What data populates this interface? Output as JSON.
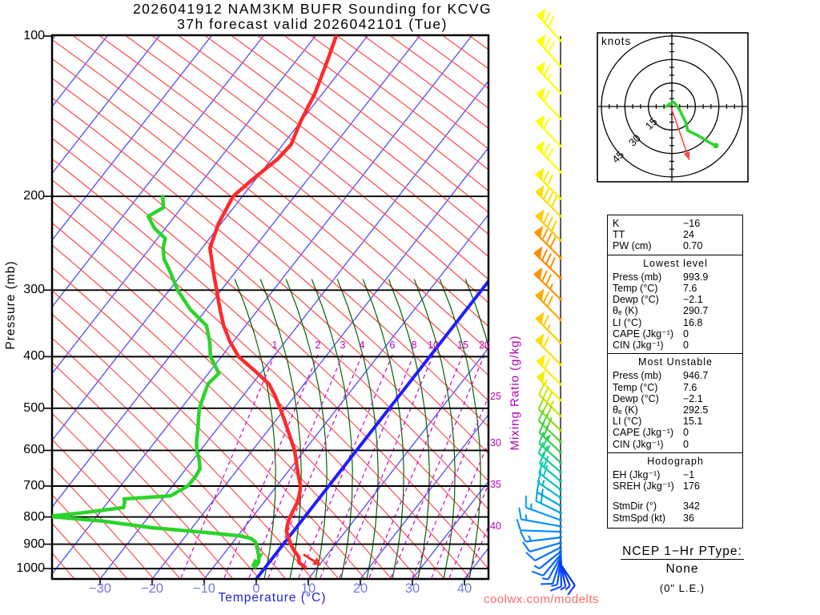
{
  "title": {
    "line1": "2026041912 NAM3KM BUFR Sounding for KCVG",
    "line2": "37h forecast valid 2026042101 (Tue)"
  },
  "watermark": "coolwx.com/modelts",
  "axes": {
    "pressure_label": "Pressure (mb)",
    "pressure_ticks": [
      100,
      200,
      300,
      400,
      500,
      600,
      700,
      800,
      900,
      1000
    ],
    "temp_label": "Temperature (°C)",
    "temp_ticks": [
      -30,
      -20,
      -10,
      0,
      10,
      20,
      30,
      40
    ],
    "mixing_label": "Mixing Ratio (g/kg)",
    "mixing_ticks_400mb": [
      1,
      2,
      3,
      4,
      6,
      8,
      10,
      15,
      20
    ],
    "mixing_ticks_right": [
      25,
      30,
      35,
      40
    ]
  },
  "chart_data": {
    "type": "skewt-sounding",
    "pressure_range_mb": [
      100,
      1050
    ],
    "temp_axis_range_c": [
      -40,
      45
    ],
    "temperature_profile_p_t": [
      [
        993.9,
        7.6
      ],
      [
        975,
        5.8
      ],
      [
        950,
        4.8
      ],
      [
        925,
        3.0
      ],
      [
        900,
        1.4
      ],
      [
        875,
        0.0
      ],
      [
        850,
        -1.4
      ],
      [
        825,
        -2.2
      ],
      [
        800,
        -2.8
      ],
      [
        775,
        -3.2
      ],
      [
        750,
        -3.6
      ],
      [
        725,
        -4.4
      ],
      [
        700,
        -5.4
      ],
      [
        675,
        -7.0
      ],
      [
        650,
        -8.6
      ],
      [
        625,
        -10.2
      ],
      [
        600,
        -11.9
      ],
      [
        575,
        -14.0
      ],
      [
        550,
        -16.2
      ],
      [
        525,
        -18.5
      ],
      [
        500,
        -21.0
      ],
      [
        475,
        -23.7
      ],
      [
        450,
        -26.8
      ],
      [
        425,
        -31.5
      ],
      [
        400,
        -36.7
      ],
      [
        375,
        -40.6
      ],
      [
        350,
        -44.2
      ],
      [
        325,
        -47.5
      ],
      [
        300,
        -50.9
      ],
      [
        275,
        -54.6
      ],
      [
        250,
        -58.5
      ],
      [
        225,
        -60.5
      ],
      [
        200,
        -61.8
      ],
      [
        185,
        -60.5
      ],
      [
        170,
        -58.8
      ],
      [
        160,
        -58.4
      ],
      [
        145,
        -60.0
      ],
      [
        128,
        -61.5
      ],
      [
        110,
        -64.2
      ],
      [
        100,
        -66.0
      ]
    ],
    "dewpoint_profile_p_t": [
      [
        993.9,
        -2.1
      ],
      [
        975,
        -2.0
      ],
      [
        950,
        -2.8
      ],
      [
        925,
        -4.0
      ],
      [
        900,
        -5.2
      ],
      [
        890,
        -5.8
      ],
      [
        878,
        -7.1
      ],
      [
        868,
        -9.7
      ],
      [
        855,
        -17.0
      ],
      [
        838,
        -27.7
      ],
      [
        815,
        -38.0
      ],
      [
        798,
        -49.3
      ],
      [
        785,
        -43.0
      ],
      [
        768,
        -36.2
      ],
      [
        750,
        -36.8
      ],
      [
        740,
        -37.4
      ],
      [
        735,
        -33.0
      ],
      [
        730,
        -28.9
      ],
      [
        715,
        -28.0
      ],
      [
        700,
        -27.1
      ],
      [
        675,
        -27.0
      ],
      [
        650,
        -27.3
      ],
      [
        625,
        -28.8
      ],
      [
        600,
        -30.7
      ],
      [
        575,
        -32.2
      ],
      [
        550,
        -33.5
      ],
      [
        525,
        -35.0
      ],
      [
        500,
        -36.5
      ],
      [
        470,
        -37.7
      ],
      [
        450,
        -38.5
      ],
      [
        430,
        -38.0
      ],
      [
        415,
        -40.0
      ],
      [
        400,
        -42.1
      ],
      [
        375,
        -44.5
      ],
      [
        350,
        -47.5
      ],
      [
        326,
        -53.1
      ],
      [
        300,
        -58.4
      ],
      [
        275,
        -63.0
      ],
      [
        262,
        -65.7
      ],
      [
        250,
        -67.5
      ],
      [
        240,
        -68.5
      ],
      [
        230,
        -72.0
      ],
      [
        218,
        -75.1
      ],
      [
        210,
        -73.5
      ],
      [
        200,
        -75.3
      ]
    ],
    "wind_barbs": [
      [
        102,
        42,
        44,
        1,
        2,
        0,
        "#ffff00"
      ],
      [
        114,
        42,
        44,
        1,
        2,
        0,
        "#ffff00"
      ],
      [
        128,
        43,
        44,
        1,
        1,
        1,
        "#ffff00"
      ],
      [
        143,
        43,
        44,
        1,
        1,
        0,
        "#ffff00"
      ],
      [
        161,
        44,
        44,
        1,
        1,
        0,
        "#ffff00"
      ],
      [
        180,
        44,
        44,
        1,
        2,
        0,
        "#ffff00"
      ],
      [
        202,
        45,
        44,
        1,
        2,
        0,
        "#ffee00"
      ],
      [
        218,
        45,
        44,
        1,
        3,
        0,
        "#ffdd00"
      ],
      [
        242,
        45,
        44,
        1,
        3,
        0,
        "#ffcc00"
      ],
      [
        261,
        45,
        46,
        1,
        3,
        0,
        "#ff9900"
      ],
      [
        285,
        46,
        46,
        1,
        3,
        0,
        "#ff8800"
      ],
      [
        312,
        46,
        46,
        1,
        2,
        1,
        "#ff9100"
      ],
      [
        341,
        45,
        44,
        1,
        2,
        0,
        "#ffaa00"
      ],
      [
        377,
        45,
        44,
        1,
        1,
        1,
        "#ffc800"
      ],
      [
        414,
        45,
        44,
        1,
        1,
        0,
        "#ffdd00"
      ],
      [
        451,
        45,
        42,
        1,
        1,
        0,
        "#ffee00"
      ],
      [
        483,
        45,
        42,
        1,
        0,
        1,
        "#f2ee00"
      ],
      [
        517,
        45,
        38,
        0,
        3,
        1,
        "#cce600"
      ],
      [
        550,
        46,
        38,
        0,
        3,
        0,
        "#99dd11"
      ],
      [
        578,
        46,
        38,
        0,
        3,
        0,
        "#55d533"
      ],
      [
        605,
        47,
        36,
        0,
        2,
        1,
        "#33cc44"
      ],
      [
        632,
        48,
        36,
        0,
        2,
        1,
        "#22cc66"
      ],
      [
        659,
        49,
        36,
        0,
        2,
        0,
        "#11cc88"
      ],
      [
        685,
        50,
        34,
        0,
        2,
        0,
        "#00ccaa"
      ],
      [
        711,
        52,
        34,
        0,
        2,
        0,
        "#00c4bb"
      ],
      [
        736,
        56,
        34,
        0,
        1,
        1,
        "#00bbcc"
      ],
      [
        762,
        60,
        34,
        0,
        1,
        1,
        "#00aadd"
      ],
      [
        786,
        64,
        34,
        0,
        2,
        0,
        "#00a2ee"
      ],
      [
        811,
        70,
        46,
        0,
        1,
        1,
        "#0099ff"
      ],
      [
        833,
        80,
        50,
        0,
        1,
        1,
        "#0090ff"
      ],
      [
        853,
        88,
        50,
        0,
        1,
        0,
        "#0088ff"
      ],
      [
        874,
        97,
        44,
        0,
        1,
        1,
        "#0080ff"
      ],
      [
        895,
        106,
        40,
        0,
        1,
        0,
        "#0077ff"
      ],
      [
        913,
        117,
        36,
        0,
        1,
        0,
        "#0070ff"
      ],
      [
        929,
        129,
        34,
        0,
        0,
        1,
        "#0066ff"
      ],
      [
        942,
        140,
        34,
        0,
        1,
        0,
        "#0066ff"
      ],
      [
        951,
        151,
        32,
        0,
        0,
        1,
        "#005eff"
      ],
      [
        961,
        162,
        32,
        0,
        1,
        0,
        "#0055ff"
      ],
      [
        968,
        172,
        30,
        0,
        0,
        1,
        "#0050ff"
      ],
      [
        974,
        182,
        30,
        0,
        1,
        0,
        "#0044ff"
      ],
      [
        977,
        192,
        30,
        0,
        0,
        1,
        "#0040ff"
      ],
      [
        979,
        203,
        30,
        0,
        0,
        1,
        "#0038ff"
      ],
      [
        981,
        214,
        32,
        0,
        1,
        0,
        "#0033ff"
      ]
    ],
    "hodograph": {
      "unit_label": "knots",
      "rings_kt": [
        15,
        30,
        45
      ],
      "trace_uv_kt": [
        [
          -3.6,
          0
        ],
        [
          0.5,
          2.8
        ],
        [
          1.5,
          2.6
        ],
        [
          4.6,
          -1.5
        ],
        [
          8.7,
          -9.7
        ],
        [
          10.2,
          -15.3
        ],
        [
          17.3,
          -18.9
        ],
        [
          24.0,
          -23.0
        ],
        [
          28.1,
          -25.0
        ]
      ],
      "storm_motion_uv_kt": [
        11.2,
        -34.2
      ]
    }
  },
  "stats_panel": {
    "sections": [
      {
        "header": "",
        "rows": [
          [
            "K",
            "−16"
          ],
          [
            "TT",
            "24"
          ],
          [
            "PW (cm)",
            "0.70"
          ]
        ]
      },
      {
        "header": "Lowest level",
        "rows": [
          [
            "Press (mb)",
            "993.9"
          ],
          [
            "Temp (°C)",
            "7.6"
          ],
          [
            "Dewp (°C)",
            "−2.1"
          ],
          [
            "θₑ (K)",
            "290.7"
          ],
          [
            "LI (°C)",
            "16.8"
          ],
          [
            "CAPE (Jkg⁻¹)",
            "0"
          ],
          [
            "CIN (Jkg⁻¹)",
            "0"
          ]
        ]
      },
      {
        "header": "Most Unstable",
        "rows": [
          [
            "Press (mb)",
            "946.7"
          ],
          [
            "Temp (°C)",
            "7.6"
          ],
          [
            "Dewp (°C)",
            "−2.1"
          ],
          [
            "θₑ (K)",
            "292.5"
          ],
          [
            "LI (°C)",
            "15.1"
          ],
          [
            "CAPE (Jkg⁻¹)",
            "0"
          ],
          [
            "CIN (Jkg⁻¹)",
            "0"
          ]
        ]
      },
      {
        "header": "Hodograph",
        "gap_before": 2,
        "rows": [
          [
            "EH (Jkg⁻¹)",
            "−1"
          ],
          [
            "SREH (Jkg⁻¹)",
            "176"
          ],
          [
            "StmDir (°)",
            "342"
          ],
          [
            "StmSpd (kt)",
            "36"
          ]
        ]
      }
    ]
  },
  "ptype": {
    "line1": "NCEP 1−Hr PType:",
    "line2": "None",
    "line3": "(0\" L.E.)"
  },
  "colors": {
    "temperature_line": "#ff2a2a",
    "dewpoint_line": "#2bd42b",
    "isotherm": "#4d4dff",
    "zero_isotherm": "#1e1eff",
    "dry_adiabat": "#ff4a4a",
    "moist_adiabat": "#006400",
    "mixing_ratio": "#cc00cc",
    "grid": "#000000",
    "temp_axis_text": "#7777ea",
    "watermark_text": "#ff6a6a",
    "storm_vector": "#ff4444"
  }
}
